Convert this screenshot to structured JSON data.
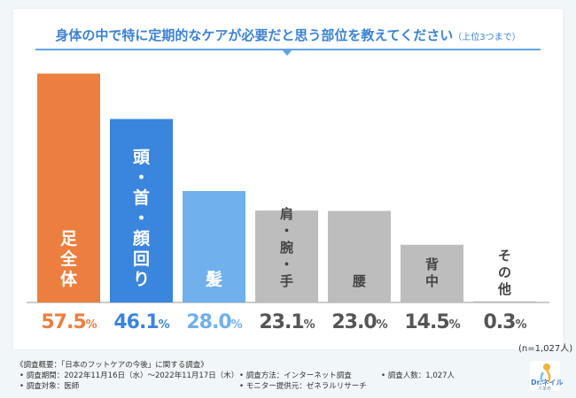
{
  "title": {
    "main": "身体の中で特に定期的なケアが必要だと思う部位を教えてください",
    "sub": "（上位3つまで）"
  },
  "n_note": "(n=1,027人)",
  "colors": {
    "orange": "#ec7f3f",
    "blue": "#3a85dd",
    "light_blue": "#70b0ec",
    "gray": "#bdbdbd",
    "value_gray": "#555555",
    "title_blue": "#3b82d6"
  },
  "chart_data": {
    "type": "bar",
    "title": "身体の中で特に定期的なケアが必要だと思う部位を教えてください（上位3つまで）",
    "categories": [
      "足全体",
      "頭・首・顔回り",
      "髪",
      "肩・腕・手",
      "腰",
      "背中",
      "その他"
    ],
    "values": [
      57.5,
      46.1,
      28.0,
      23.1,
      23.0,
      14.5,
      0.3
    ],
    "value_labels": [
      "57.5",
      "46.1",
      "28.0",
      "23.1",
      "23.0",
      "14.5",
      "0.3"
    ],
    "unit": "%",
    "bar_colors": [
      "#ec7f3f",
      "#3a85dd",
      "#70b0ec",
      "#bdbdbd",
      "#bdbdbd",
      "#bdbdbd",
      "#bdbdbd"
    ],
    "value_colors": [
      "#ec7f3f",
      "#3a85dd",
      "#70b0ec",
      "#555555",
      "#555555",
      "#555555",
      "#555555"
    ],
    "ylim": [
      0,
      60
    ],
    "grid": false,
    "legend": "none"
  },
  "footer": {
    "survey_title": "《調査概要：「日本のフットケアの今後」に関する調査》",
    "period": "• 調査期間：2022年11月16日（水）〜2022年11月17日（木）",
    "method": "• 調査方法：インターネット調査",
    "respondents": "• 調査人数：1,027人",
    "target": "• 調査対象：医師",
    "provider": "• モニター提供元：ゼネラルリサーチ"
  },
  "logo": {
    "text": "Dr.ネイル",
    "sub": "爪革命",
    "icon": "dr-nail-logo-icon"
  }
}
